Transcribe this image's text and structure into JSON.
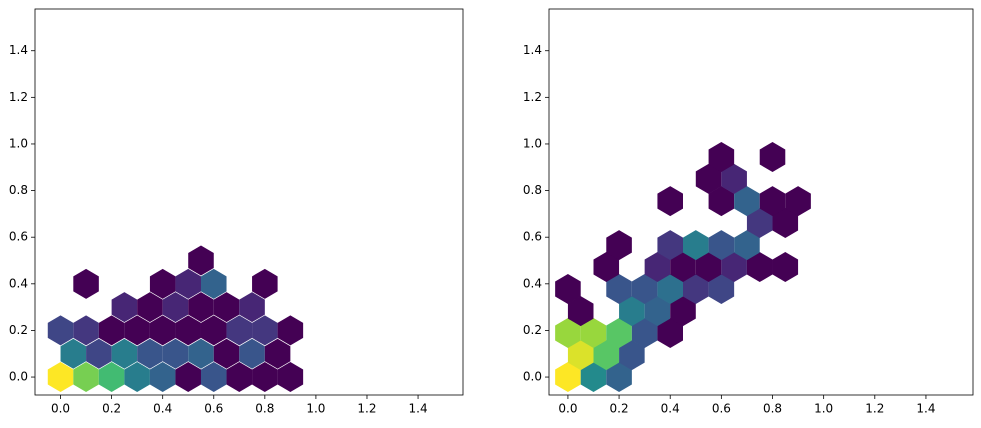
{
  "chart_data": [
    {
      "type": "hexbin",
      "colormap": "viridis",
      "x": [
        0,
        0.1,
        0.2,
        0.3,
        0.4,
        0.5,
        0.6,
        0.7,
        0.8,
        0.9,
        0.05,
        0.15,
        0.25,
        0.35,
        0.45,
        0.55,
        0.65,
        0.75,
        0.85,
        0,
        0.1,
        0.2,
        0.3,
        0.4,
        0.5,
        0.6,
        0.7,
        0.8,
        0.9,
        0.25,
        0.35,
        0.45,
        0.55,
        0.65,
        0.75,
        0.1,
        0.4,
        0.5,
        0.6,
        0.8,
        0.55
      ],
      "y": [
        0,
        0,
        0,
        0,
        0,
        0,
        0,
        0,
        0,
        0,
        0.1,
        0.1,
        0.1,
        0.1,
        0.1,
        0.1,
        0.1,
        0.1,
        0.1,
        0.2,
        0.2,
        0.2,
        0.2,
        0.2,
        0.2,
        0.2,
        0.2,
        0.2,
        0.2,
        0.3,
        0.3,
        0.3,
        0.3,
        0.3,
        0.3,
        0.4,
        0.4,
        0.4,
        0.4,
        0.4,
        0.5
      ],
      "counts": [
        20,
        16,
        14,
        9,
        7,
        1,
        6,
        1,
        1,
        1,
        9,
        5,
        9,
        6,
        6,
        7,
        1,
        6,
        1,
        5,
        4,
        1,
        1,
        1,
        1,
        1,
        4,
        4,
        1,
        3,
        1,
        3,
        1,
        1,
        3,
        1,
        1,
        3,
        7,
        1,
        1
      ],
      "xlim": [
        -0.1,
        1.576
      ],
      "ylim": [
        -0.077,
        1.579
      ],
      "xticks": [
        {
          "value": 0,
          "label": "0.0"
        },
        0.2,
        0.4,
        0.6,
        0.8,
        {
          "value": 1,
          "label": "1.0"
        },
        1.2,
        1.4
      ],
      "yticks": [
        {
          "value": 0,
          "label": "0.0"
        },
        0.2,
        0.4,
        0.6,
        0.8,
        {
          "value": 1,
          "label": "1.0"
        },
        1.2,
        1.4
      ]
    },
    {
      "type": "hexbin",
      "colormap": "viridis",
      "x": [
        0,
        0.1,
        0.2,
        0.05,
        0.15,
        0.25,
        0,
        0.1,
        0.2,
        0.3,
        0.4,
        0.05,
        0.25,
        0.35,
        0.45,
        0,
        0.2,
        0.3,
        0.4,
        0.5,
        0.6,
        0.15,
        0.35,
        0.45,
        0.55,
        0.65,
        0.75,
        0.85,
        0.2,
        0.4,
        0.5,
        0.6,
        0.7,
        0.75,
        0.85,
        0.4,
        0.6,
        0.7,
        0.8,
        0.9,
        0.55,
        0.65,
        0.6,
        0.8
      ],
      "y": [
        0,
        0,
        0,
        0.094,
        0.094,
        0.094,
        0.189,
        0.189,
        0.189,
        0.189,
        0.189,
        0.283,
        0.283,
        0.283,
        0.283,
        0.378,
        0.378,
        0.378,
        0.378,
        0.378,
        0.378,
        0.472,
        0.472,
        0.472,
        0.472,
        0.472,
        0.472,
        0.472,
        0.566,
        0.566,
        0.566,
        0.566,
        0.566,
        0.661,
        0.661,
        0.755,
        0.755,
        0.755,
        0.755,
        0.755,
        0.85,
        0.85,
        0.944,
        0.944
      ],
      "counts": [
        20,
        10,
        7,
        19,
        15,
        6,
        17,
        17,
        15,
        6,
        1,
        1,
        9,
        7,
        1,
        1,
        6,
        6,
        8,
        4,
        5,
        1,
        3,
        1,
        1,
        3,
        1,
        1,
        1,
        4,
        9,
        6,
        7,
        4,
        1,
        1,
        1,
        7,
        1,
        1,
        1,
        3,
        1,
        1
      ],
      "xlim": [
        -0.074,
        1.584
      ],
      "ylim": [
        -0.077,
        1.579
      ],
      "xticks": [
        {
          "value": 0,
          "label": "0.0"
        },
        0.2,
        0.4,
        0.6,
        0.8,
        {
          "value": 1,
          "label": "1.0"
        },
        1.2,
        1.4
      ],
      "yticks": [
        {
          "value": 0,
          "label": "0.0"
        },
        0.2,
        0.4,
        0.6,
        0.8,
        {
          "value": 1,
          "label": "1.0"
        },
        1.2,
        1.4
      ]
    }
  ]
}
